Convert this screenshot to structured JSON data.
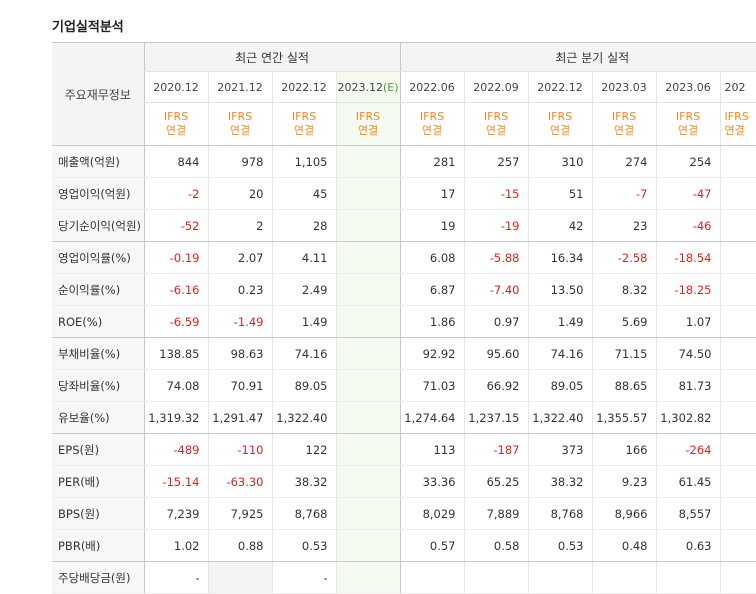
{
  "section_title": "기업실적분석",
  "header": {
    "side_label": "주요재무정보",
    "annual_group": "최근 연간 실적",
    "quarter_group": "최근 분기 실적",
    "annual_periods": [
      "2020.12",
      "2021.12",
      "2022.12"
    ],
    "estimate_period_main": "2023.12",
    "estimate_period_mark": "(E)",
    "quarter_periods": [
      "2022.06",
      "2022.09",
      "2022.12",
      "2023.03",
      "2023.06",
      "202"
    ],
    "ifrs": "IFRS",
    "consolidated": "연결"
  },
  "rows": [
    {
      "label": "매출액(억원)",
      "annual": [
        "844",
        "978",
        "1,105"
      ],
      "est": "",
      "quarter": [
        "281",
        "257",
        "310",
        "274",
        "254"
      ]
    },
    {
      "label": "영업이익(억원)",
      "annual": [
        "-2",
        "20",
        "45"
      ],
      "est": "",
      "quarter": [
        "17",
        "-15",
        "51",
        "-7",
        "-47"
      ]
    },
    {
      "label": "당기순이익(억원)",
      "annual": [
        "-52",
        "2",
        "28"
      ],
      "est": "",
      "quarter": [
        "19",
        "-19",
        "42",
        "23",
        "-46"
      ]
    },
    {
      "label": "영업이익률(%)",
      "annual": [
        "-0.19",
        "2.07",
        "4.11"
      ],
      "est": "",
      "quarter": [
        "6.08",
        "-5.88",
        "16.34",
        "-2.58",
        "-18.54"
      ]
    },
    {
      "label": "순이익률(%)",
      "annual": [
        "-6.16",
        "0.23",
        "2.49"
      ],
      "est": "",
      "quarter": [
        "6.87",
        "-7.40",
        "13.50",
        "8.32",
        "-18.25"
      ]
    },
    {
      "label": "ROE(%)",
      "annual": [
        "-6.59",
        "-1.49",
        "1.49"
      ],
      "est": "",
      "quarter": [
        "1.86",
        "0.97",
        "1.49",
        "5.69",
        "1.07"
      ]
    },
    {
      "label": "부채비율(%)",
      "annual": [
        "138.85",
        "98.63",
        "74.16"
      ],
      "est": "",
      "quarter": [
        "92.92",
        "95.60",
        "74.16",
        "71.15",
        "74.50"
      ]
    },
    {
      "label": "당좌비율(%)",
      "annual": [
        "74.08",
        "70.91",
        "89.05"
      ],
      "est": "",
      "quarter": [
        "71.03",
        "66.92",
        "89.05",
        "88.65",
        "81.73"
      ]
    },
    {
      "label": "유보율(%)",
      "annual": [
        "1,319.32",
        "1,291.47",
        "1,322.40"
      ],
      "est": "",
      "quarter": [
        "1,274.64",
        "1,237.15",
        "1,322.40",
        "1,355.57",
        "1,302.82"
      ]
    },
    {
      "label": "EPS(원)",
      "annual": [
        "-489",
        "-110",
        "122"
      ],
      "est": "",
      "quarter": [
        "113",
        "-187",
        "373",
        "166",
        "-264"
      ]
    },
    {
      "label": "PER(배)",
      "annual": [
        "-15.14",
        "-63.30",
        "38.32"
      ],
      "est": "",
      "quarter": [
        "33.36",
        "65.25",
        "38.32",
        "9.23",
        "61.45"
      ]
    },
    {
      "label": "BPS(원)",
      "annual": [
        "7,239",
        "7,925",
        "8,768"
      ],
      "est": "",
      "quarter": [
        "8,029",
        "7,889",
        "8,768",
        "8,966",
        "8,557"
      ]
    },
    {
      "label": "PBR(배)",
      "annual": [
        "1.02",
        "0.88",
        "0.53"
      ],
      "est": "",
      "quarter": [
        "0.57",
        "0.58",
        "0.53",
        "0.48",
        "0.63"
      ]
    },
    {
      "label": "주당배당금(원)",
      "annual": [
        "-",
        "",
        "-"
      ],
      "est": "",
      "quarter": [
        "",
        "",
        "",
        "",
        ""
      ]
    }
  ],
  "colors": {
    "negative": "#e0221e",
    "ifrs_accent": "#f08a24",
    "estimate_bg": "#f4faf0"
  }
}
